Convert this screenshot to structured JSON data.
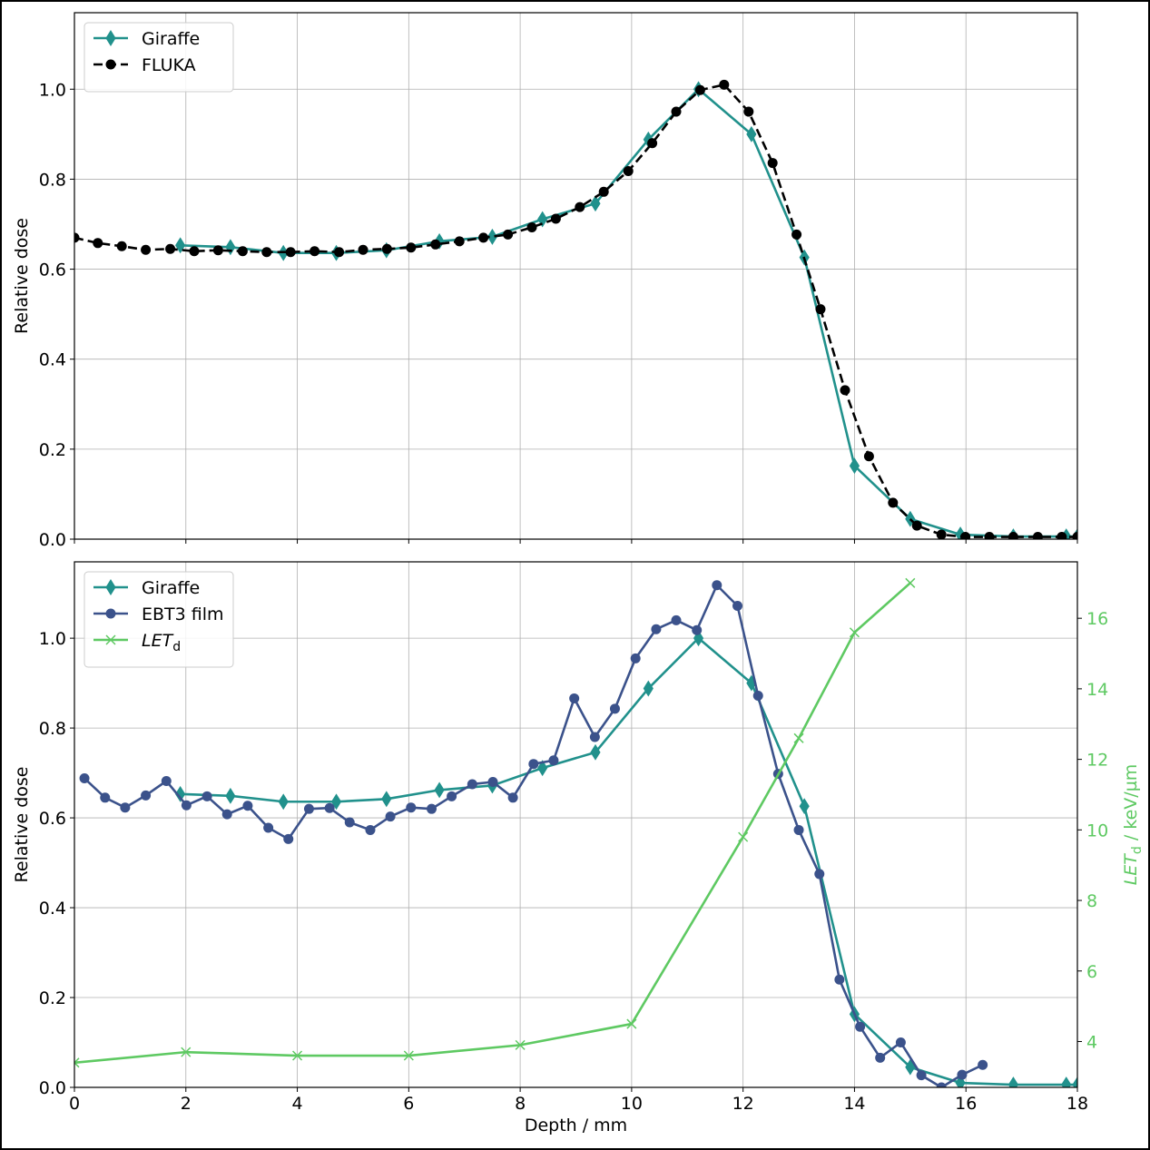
{
  "chart_data": [
    {
      "type": "line",
      "panel": "top",
      "xlabel": "",
      "ylabel": "Relative dose",
      "xlim": [
        0,
        18
      ],
      "ylim": [
        0.0,
        1.17
      ],
      "xticks": [
        0,
        2,
        4,
        6,
        8,
        10,
        12,
        14,
        16,
        18
      ],
      "yticks": [
        "0.0",
        "0.2",
        "0.4",
        "0.6",
        "0.8",
        "1.0"
      ],
      "grid": true,
      "legend_position": "top-left",
      "series": [
        {
          "name": "Giraffe",
          "color": "#21918c",
          "marker": "diamond",
          "linestyle": "solid",
          "x": [
            1.9,
            2.8,
            3.75,
            4.7,
            5.6,
            6.55,
            7.5,
            8.4,
            9.35,
            10.3,
            11.2,
            12.15,
            13.1,
            14.0,
            15.0,
            15.9,
            16.85,
            17.8,
            18.0
          ],
          "y": [
            0.653,
            0.649,
            0.636,
            0.636,
            0.642,
            0.662,
            0.672,
            0.711,
            0.746,
            0.888,
            1.0,
            0.9,
            0.626,
            0.163,
            0.045,
            0.01,
            0.006,
            0.006,
            0.006
          ]
        },
        {
          "name": "FLUKA",
          "color": "#000000",
          "marker": "circle",
          "linestyle": "dashed",
          "x": [
            0.0,
            0.42,
            0.85,
            1.28,
            1.72,
            2.15,
            2.58,
            3.02,
            3.45,
            3.88,
            4.31,
            4.75,
            5.18,
            5.61,
            6.04,
            6.48,
            6.91,
            7.34,
            7.78,
            8.21,
            8.64,
            9.07,
            9.5,
            9.94,
            10.37,
            10.8,
            11.23,
            11.66,
            12.1,
            12.53,
            12.96,
            13.39,
            13.83,
            14.26,
            14.69,
            15.12,
            15.56,
            15.99,
            16.42,
            16.85,
            17.29,
            17.72,
            18.0
          ],
          "y": [
            0.67,
            0.658,
            0.651,
            0.643,
            0.645,
            0.64,
            0.642,
            0.64,
            0.638,
            0.638,
            0.64,
            0.638,
            0.643,
            0.645,
            0.648,
            0.655,
            0.662,
            0.67,
            0.677,
            0.693,
            0.712,
            0.738,
            0.772,
            0.818,
            0.88,
            0.95,
            0.998,
            1.01,
            0.95,
            0.836,
            0.677,
            0.511,
            0.331,
            0.184,
            0.081,
            0.03,
            0.01,
            0.005,
            0.005,
            0.005,
            0.005,
            0.005,
            0.005
          ]
        }
      ]
    },
    {
      "type": "line",
      "panel": "bottom",
      "xlabel": "Depth / mm",
      "ylabel": "Relative dose",
      "y2label_main": "LET",
      "y2label_sub": "d",
      "y2label_unit": " / keV/µm",
      "xlim": [
        0,
        18
      ],
      "ylim": [
        0.0,
        1.17
      ],
      "y2lim": [
        2.7,
        17.6
      ],
      "xticks": [
        0,
        2,
        4,
        6,
        8,
        10,
        12,
        14,
        16,
        18
      ],
      "yticks": [
        "0.0",
        "0.2",
        "0.4",
        "0.6",
        "0.8",
        "1.0"
      ],
      "y2ticks": [
        4,
        6,
        8,
        10,
        12,
        14,
        16
      ],
      "grid": true,
      "legend_position": "top-left",
      "series": [
        {
          "name": "Giraffe",
          "color": "#21918c",
          "marker": "diamond",
          "linestyle": "solid",
          "axis": "left",
          "x": [
            1.9,
            2.8,
            3.75,
            4.7,
            5.6,
            6.55,
            7.5,
            8.4,
            9.35,
            10.3,
            11.2,
            12.15,
            13.1,
            14.0,
            15.0,
            15.9,
            16.85,
            17.8,
            18.0
          ],
          "y": [
            0.653,
            0.649,
            0.636,
            0.636,
            0.642,
            0.662,
            0.672,
            0.711,
            0.746,
            0.888,
            1.0,
            0.9,
            0.626,
            0.163,
            0.045,
            0.01,
            0.006,
            0.006,
            0.006
          ]
        },
        {
          "name": "EBT3 film",
          "color": "#3b528b",
          "marker": "circle",
          "linestyle": "solid",
          "axis": "left",
          "x": [
            0.18,
            0.55,
            0.91,
            1.28,
            1.65,
            2.01,
            2.38,
            2.74,
            3.11,
            3.48,
            3.84,
            4.21,
            4.58,
            4.94,
            5.31,
            5.67,
            6.04,
            6.41,
            6.77,
            7.14,
            7.51,
            7.87,
            8.24,
            8.6,
            8.97,
            9.34,
            9.7,
            10.07,
            10.44,
            10.8,
            11.17,
            11.53,
            11.9,
            12.27,
            12.63,
            13.0,
            13.37,
            13.73,
            14.1,
            14.46,
            14.83,
            15.2,
            15.56,
            15.93,
            16.3
          ],
          "y": [
            0.688,
            0.645,
            0.623,
            0.65,
            0.682,
            0.628,
            0.648,
            0.608,
            0.627,
            0.578,
            0.553,
            0.62,
            0.622,
            0.59,
            0.573,
            0.603,
            0.623,
            0.62,
            0.648,
            0.675,
            0.68,
            0.645,
            0.72,
            0.728,
            0.866,
            0.78,
            0.843,
            0.955,
            1.02,
            1.04,
            1.018,
            1.118,
            1.072,
            0.872,
            0.698,
            0.573,
            0.475,
            0.24,
            0.135,
            0.066,
            0.1,
            0.027,
            0.0,
            0.028,
            0.05
          ]
        },
        {
          "name": "LETd",
          "name_main": "LET",
          "name_sub": "d",
          "color": "#5ec962",
          "marker": "x",
          "linestyle": "solid",
          "axis": "right",
          "x": [
            0,
            2,
            4,
            6,
            8,
            10,
            12,
            13,
            14,
            15
          ],
          "y": [
            3.4,
            3.7,
            3.6,
            3.6,
            3.9,
            4.5,
            9.8,
            12.6,
            15.6,
            17.0
          ]
        }
      ]
    }
  ]
}
